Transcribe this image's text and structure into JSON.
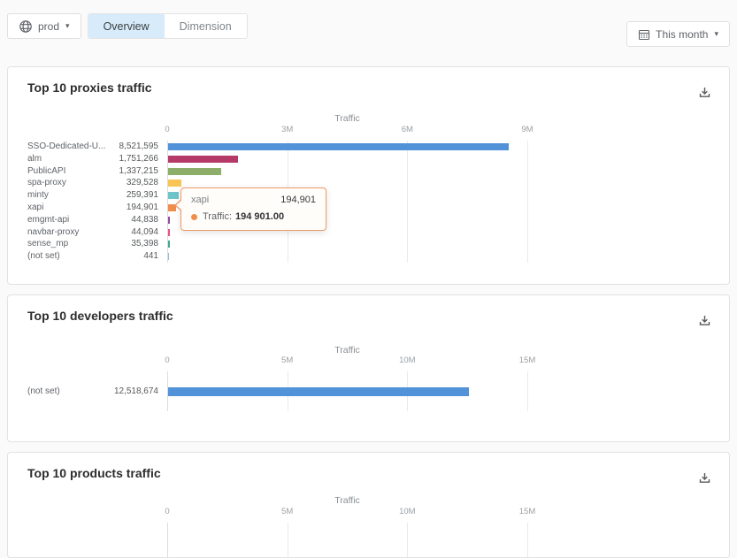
{
  "toolbar": {
    "env_label": "prod",
    "tabs": [
      {
        "label": "Overview"
      },
      {
        "label": "Dimension"
      }
    ],
    "active_tab": "Overview",
    "date_range_label": "This month"
  },
  "theme": {
    "active_tab_bg": "#d7ebfa",
    "card_bg": "#ffffff",
    "page_bg": "#fafafa"
  },
  "charts": [
    {
      "title": "Top 10 proxies traffic",
      "chart_data": {
        "type": "bar",
        "orientation": "horizontal",
        "axis_title": "Traffic",
        "tick_labels": [
          "0",
          "3M",
          "6M",
          "9M"
        ],
        "axis_max": 9000000,
        "categories": [
          "SSO-Dedicated-U...",
          "alm",
          "PublicAPI",
          "spa-proxy",
          "minty",
          "xapi",
          "emgmt-api",
          "navbar-proxy",
          "sense_mp",
          "(not set)"
        ],
        "values": [
          8521595,
          1751266,
          1337215,
          329528,
          259391,
          194901,
          44838,
          44094,
          35398,
          441
        ],
        "value_labels": [
          "8,521,595",
          "1,751,266",
          "1,337,215",
          "329,528",
          "259,391",
          "194,901",
          "44,838",
          "44,094",
          "35,398",
          "441"
        ],
        "bar_colors": [
          "#5192d8",
          "#b63a68",
          "#8dae68",
          "#f8c453",
          "#6ec5cb",
          "#ef8e4c",
          "#8f4da5",
          "#e8537f",
          "#3fa78e",
          "#9db8d2"
        ]
      },
      "tooltip": {
        "title": "xapi",
        "title_value": "194,901",
        "metric_label": "Traffic:",
        "metric_value": "194 901.00",
        "border_color": "#ed9966",
        "dot_color": "#ef8e4c"
      }
    },
    {
      "title": "Top 10 developers traffic",
      "chart_data": {
        "type": "bar",
        "orientation": "horizontal",
        "axis_title": "Traffic",
        "tick_labels": [
          "0",
          "5M",
          "10M",
          "15M"
        ],
        "axis_max": 15000000,
        "categories": [
          "(not set)"
        ],
        "values": [
          12518674
        ],
        "value_labels": [
          "12,518,674"
        ],
        "bar_colors": [
          "#5192d8"
        ]
      }
    },
    {
      "title": "Top 10 products traffic",
      "chart_data": {
        "type": "bar",
        "orientation": "horizontal",
        "axis_title": "Traffic",
        "tick_labels": [
          "0",
          "5M",
          "10M",
          "15M"
        ],
        "axis_max": 15000000,
        "categories": [],
        "values": [],
        "value_labels": [],
        "bar_colors": []
      }
    }
  ]
}
